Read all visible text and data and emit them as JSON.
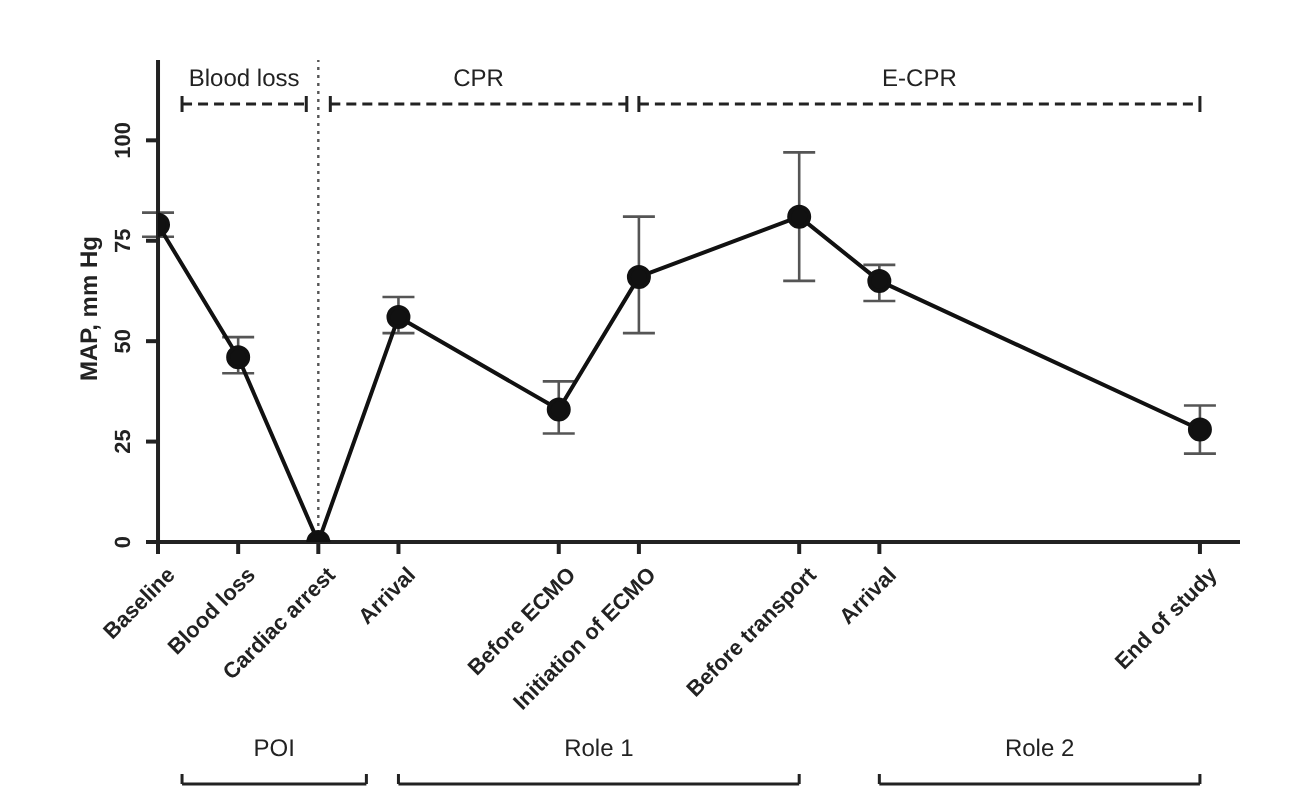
{
  "chart_data": {
    "type": "line",
    "ylabel": "MAP, mm Hg",
    "categories": [
      "Baseline",
      "Blood loss",
      "Cardiac arrest",
      "Arrival",
      null,
      "Before ECMO",
      "Initiation of ECMO",
      null,
      "Before transport",
      "Arrival",
      null,
      null,
      null,
      "End of study"
    ],
    "values": [
      79,
      46,
      0,
      56,
      null,
      33,
      66,
      null,
      81,
      65,
      null,
      null,
      null,
      28
    ],
    "errors": [
      [
        76,
        82
      ],
      [
        42,
        51
      ],
      null,
      [
        52,
        61
      ],
      null,
      [
        27,
        40
      ],
      [
        52,
        81
      ],
      null,
      [
        65,
        97
      ],
      [
        60,
        69
      ],
      null,
      null,
      null,
      [
        22,
        34
      ]
    ],
    "color": "#111111",
    "marker": "circle",
    "line_style": "solid",
    "ylim": [
      0,
      120
    ],
    "yticks": [
      0,
      25,
      50,
      75,
      100
    ],
    "ref_lines": [
      {
        "axis": "x",
        "value": "Cardiac arrest",
        "line_style": "dotted",
        "color": "#555555"
      }
    ],
    "annotations": [
      "Blood loss",
      "CPR",
      "E-CPR",
      "POI",
      "Role 1",
      "Role 2"
    ]
  }
}
